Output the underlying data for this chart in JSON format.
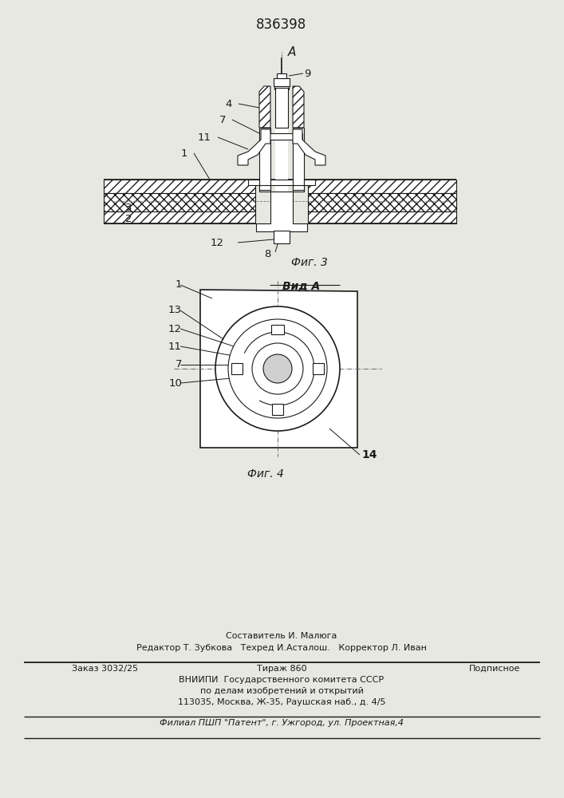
{
  "patent_number": "836398",
  "fig3_label": "Фиг. 3",
  "fig4_label": "Фиг. 4",
  "view_label": "Вид А",
  "arrow_label": "А",
  "bg_color": "#e8e8e3",
  "line_color": "#1a1a1a",
  "footer_line1": "Составитель И. Малюга",
  "footer_line2": "Редактор Т. Зубкова   Техред И.Асталош.   Корректор Л. Иван",
  "footer_zakaz": "Заказ 3032/25",
  "footer_tirazh": "Тираж 860",
  "footer_podp": "Подписное",
  "footer_vniip1": "ВНИИПИ  Государственного комитета СССР",
  "footer_vniip2": "по делам изобретений и открытий",
  "footer_vniip3": "113035, Москва, Ж-35, Раушская наб., д. 4/5",
  "footer_filial": "Филиал ПШП \"Патент\", г. Ужгород, ул. Проектная,4"
}
